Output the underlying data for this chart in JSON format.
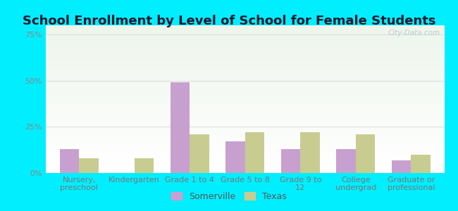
{
  "title": "School Enrollment by Level of School for Female Students",
  "categories": [
    "Nursery,\npreschool",
    "Kindergarten",
    "Grade 1 to 4",
    "Grade 5 to 8",
    "Grade 9 to\n12",
    "College\nundergrad",
    "Graduate or\nprofessional"
  ],
  "somerville": [
    13,
    0,
    49,
    17,
    13,
    13,
    7
  ],
  "texas": [
    8,
    8,
    21,
    22,
    22,
    21,
    10
  ],
  "somerville_color": "#c8a0d0",
  "texas_color": "#c8cc90",
  "bar_width": 0.35,
  "ylim": [
    0,
    80
  ],
  "yticks": [
    0,
    25,
    50,
    75
  ],
  "ytick_labels": [
    "0%",
    "25%",
    "50%",
    "75%"
  ],
  "background_outer": "#00eeff",
  "grid_color": "#dddddd",
  "title_fontsize": 13,
  "tick_fontsize": 8,
  "legend_labels": [
    "Somerville",
    "Texas"
  ],
  "watermark": "City-Data.com"
}
